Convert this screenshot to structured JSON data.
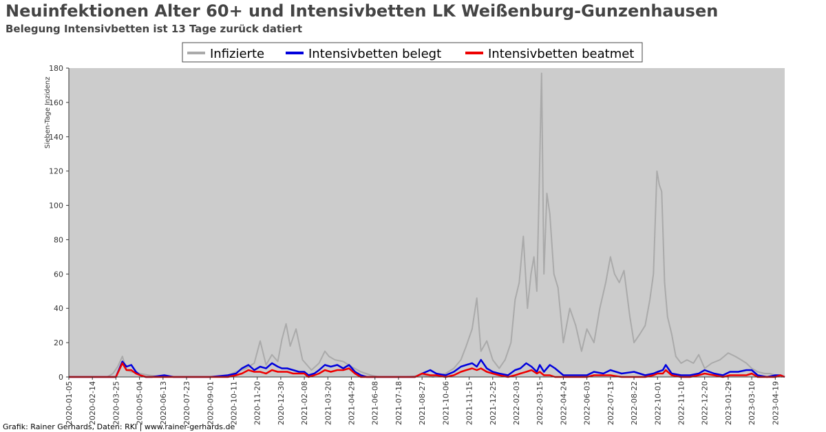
{
  "title": "Neuinfektionen Alter 60+ und Intensivbetten LK Weißenburg-Gunzenhausen",
  "subtitle": "Belegung Intensivbetten ist 13 Tage zurück datiert",
  "credit": "Grafik: Rainer Gerhards, Daten: RKI | www.rainer-gerhards.de",
  "chart_data": {
    "type": "line",
    "ylabel": "Sieben-Tage Inzidenz",
    "xlabel": "",
    "ylim": [
      0,
      180
    ],
    "xlim": [
      "2020-01-05",
      "2023-05-05"
    ],
    "grid": false,
    "legend_position": "top-center",
    "yticks": [
      0,
      20,
      40,
      60,
      80,
      100,
      120,
      140,
      160,
      180
    ],
    "xticks": [
      "2020-01-05",
      "2020-02-14",
      "2020-03-25",
      "2020-05-04",
      "2020-06-13",
      "2020-07-23",
      "2020-09-01",
      "2020-10-11",
      "2020-11-20",
      "2020-12-30",
      "2021-02-08",
      "2021-03-20",
      "2021-04-29",
      "2021-06-08",
      "2021-07-18",
      "2021-08-27",
      "2021-10-06",
      "2021-11-15",
      "2021-12-25",
      "2022-02-03",
      "2022-03-15",
      "2022-04-24",
      "2022-06-03",
      "2022-07-13",
      "2022-08-22",
      "2022-10-01",
      "2022-11-10",
      "2022-12-20",
      "2023-01-29",
      "2023-03-10",
      "2023-04-19"
    ],
    "series": [
      {
        "name": "Infizierte",
        "color": "#aaaaaa",
        "x": [
          "2020-01-05",
          "2020-03-10",
          "2020-03-20",
          "2020-03-28",
          "2020-04-05",
          "2020-04-12",
          "2020-04-20",
          "2020-05-05",
          "2020-05-20",
          "2020-06-15",
          "2020-08-01",
          "2020-09-15",
          "2020-10-01",
          "2020-10-15",
          "2020-11-01",
          "2020-11-15",
          "2020-11-25",
          "2020-12-05",
          "2020-12-15",
          "2020-12-25",
          "2021-01-01",
          "2021-01-08",
          "2021-01-15",
          "2021-01-25",
          "2021-02-05",
          "2021-02-20",
          "2021-03-05",
          "2021-03-15",
          "2021-03-22",
          "2021-04-01",
          "2021-04-15",
          "2021-04-29",
          "2021-05-15",
          "2021-06-01",
          "2021-06-15",
          "2021-08-01",
          "2021-08-27",
          "2021-09-15",
          "2021-10-06",
          "2021-10-20",
          "2021-11-01",
          "2021-11-10",
          "2021-11-20",
          "2021-11-28",
          "2021-12-05",
          "2021-12-15",
          "2021-12-25",
          "2022-01-05",
          "2022-01-15",
          "2022-01-25",
          "2022-02-01",
          "2022-02-08",
          "2022-02-15",
          "2022-02-22",
          "2022-02-28",
          "2022-03-05",
          "2022-03-10",
          "2022-03-14",
          "2022-03-18",
          "2022-03-22",
          "2022-03-27",
          "2022-04-01",
          "2022-04-08",
          "2022-04-15",
          "2022-04-24",
          "2022-05-05",
          "2022-05-15",
          "2022-05-25",
          "2022-06-03",
          "2022-06-15",
          "2022-06-25",
          "2022-07-05",
          "2022-07-13",
          "2022-07-20",
          "2022-07-28",
          "2022-08-05",
          "2022-08-15",
          "2022-08-22",
          "2022-09-01",
          "2022-09-10",
          "2022-09-18",
          "2022-09-24",
          "2022-09-30",
          "2022-10-04",
          "2022-10-08",
          "2022-10-13",
          "2022-10-18",
          "2022-10-25",
          "2022-11-01",
          "2022-11-10",
          "2022-11-20",
          "2022-12-01",
          "2022-12-10",
          "2022-12-20",
          "2023-01-01",
          "2023-01-15",
          "2023-01-29",
          "2023-02-10",
          "2023-02-20",
          "2023-03-01",
          "2023-03-10",
          "2023-03-20",
          "2023-04-01",
          "2023-04-10",
          "2023-04-19",
          "2023-05-01"
        ],
        "values": [
          0,
          0,
          2,
          6,
          12,
          4,
          3,
          2,
          1,
          0,
          0,
          0,
          1,
          3,
          5,
          8,
          21,
          7,
          13,
          9,
          22,
          31,
          18,
          28,
          10,
          4,
          8,
          15,
          12,
          10,
          9,
          6,
          3,
          1,
          0,
          0,
          1,
          0,
          2,
          5,
          10,
          18,
          28,
          46,
          15,
          21,
          10,
          5,
          10,
          20,
          45,
          55,
          82,
          40,
          60,
          70,
          50,
          112,
          177,
          60,
          107,
          95,
          60,
          52,
          20,
          40,
          30,
          15,
          28,
          20,
          40,
          55,
          70,
          60,
          55,
          62,
          35,
          20,
          25,
          30,
          45,
          60,
          120,
          112,
          108,
          55,
          35,
          25,
          12,
          8,
          10,
          8,
          13,
          5,
          8,
          10,
          14,
          12,
          10,
          8,
          5,
          3,
          2,
          2,
          1,
          0
        ]
      },
      {
        "name": "Intensivbetten belegt",
        "color": "#0000dd",
        "x": [
          "2020-01-05",
          "2020-03-25",
          "2020-04-05",
          "2020-04-12",
          "2020-04-20",
          "2020-04-28",
          "2020-05-05",
          "2020-05-15",
          "2020-05-25",
          "2020-06-15",
          "2020-07-01",
          "2020-08-01",
          "2020-09-01",
          "2020-10-01",
          "2020-10-15",
          "2020-10-25",
          "2020-11-05",
          "2020-11-15",
          "2020-11-25",
          "2020-12-05",
          "2020-12-15",
          "2020-12-25",
          "2021-01-01",
          "2021-01-10",
          "2021-01-20",
          "2021-01-30",
          "2021-02-08",
          "2021-02-15",
          "2021-02-25",
          "2021-03-05",
          "2021-03-15",
          "2021-03-25",
          "2021-04-05",
          "2021-04-15",
          "2021-04-25",
          "2021-05-05",
          "2021-05-15",
          "2021-05-25",
          "2021-06-08",
          "2021-08-15",
          "2021-08-27",
          "2021-09-10",
          "2021-09-20",
          "2021-10-06",
          "2021-10-20",
          "2021-11-01",
          "2021-11-10",
          "2021-11-20",
          "2021-11-28",
          "2021-12-05",
          "2021-12-15",
          "2021-12-25",
          "2022-01-05",
          "2022-01-20",
          "2022-02-01",
          "2022-02-10",
          "2022-02-20",
          "2022-03-01",
          "2022-03-10",
          "2022-03-15",
          "2022-03-22",
          "2022-04-01",
          "2022-04-10",
          "2022-04-24",
          "2022-05-15",
          "2022-06-03",
          "2022-06-15",
          "2022-07-01",
          "2022-07-13",
          "2022-08-01",
          "2022-08-22",
          "2022-09-10",
          "2022-09-24",
          "2022-10-01",
          "2022-10-10",
          "2022-10-15",
          "2022-10-25",
          "2022-11-10",
          "2022-11-25",
          "2022-12-10",
          "2022-12-20",
          "2023-01-05",
          "2023-01-20",
          "2023-02-01",
          "2023-02-15",
          "2023-03-01",
          "2023-03-10",
          "2023-03-20",
          "2023-04-05",
          "2023-04-19",
          "2023-04-28",
          "2023-05-05"
        ],
        "values": [
          0,
          0,
          9,
          6,
          7,
          3,
          1,
          0,
          0,
          1,
          0,
          0,
          0,
          1,
          2,
          5,
          7,
          4,
          6,
          5,
          8,
          6,
          5,
          5,
          4,
          3,
          3,
          1,
          2,
          4,
          7,
          6,
          7,
          5,
          7,
          3,
          1,
          0,
          0,
          0,
          2,
          4,
          2,
          1,
          3,
          6,
          7,
          8,
          6,
          10,
          5,
          3,
          2,
          1,
          4,
          5,
          8,
          6,
          3,
          7,
          3,
          7,
          5,
          1,
          1,
          1,
          3,
          2,
          4,
          2,
          3,
          1,
          2,
          3,
          4,
          7,
          2,
          1,
          1,
          2,
          4,
          2,
          1,
          3,
          3,
          4,
          4,
          1,
          0,
          1,
          1,
          0
        ]
      },
      {
        "name": "Intensivbetten beatmet",
        "color": "#ee0000",
        "x": [
          "2020-01-05",
          "2020-03-25",
          "2020-04-05",
          "2020-04-12",
          "2020-04-20",
          "2020-04-28",
          "2020-05-05",
          "2020-05-15",
          "2020-05-25",
          "2020-06-15",
          "2020-07-01",
          "2020-08-01",
          "2020-09-01",
          "2020-10-01",
          "2020-10-15",
          "2020-10-25",
          "2020-11-05",
          "2020-11-15",
          "2020-11-25",
          "2020-12-05",
          "2020-12-15",
          "2020-12-25",
          "2021-01-01",
          "2021-01-10",
          "2021-01-20",
          "2021-01-30",
          "2021-02-08",
          "2021-02-15",
          "2021-02-25",
          "2021-03-05",
          "2021-03-15",
          "2021-03-25",
          "2021-04-05",
          "2021-04-15",
          "2021-04-25",
          "2021-05-05",
          "2021-05-15",
          "2021-05-25",
          "2021-06-08",
          "2021-08-15",
          "2021-08-27",
          "2021-09-10",
          "2021-09-20",
          "2021-10-06",
          "2021-10-20",
          "2021-11-01",
          "2021-11-10",
          "2021-11-20",
          "2021-11-28",
          "2021-12-05",
          "2021-12-15",
          "2021-12-25",
          "2022-01-05",
          "2022-01-20",
          "2022-02-01",
          "2022-02-10",
          "2022-02-20",
          "2022-03-01",
          "2022-03-10",
          "2022-03-15",
          "2022-03-22",
          "2022-04-01",
          "2022-04-10",
          "2022-04-24",
          "2022-05-15",
          "2022-06-03",
          "2022-06-15",
          "2022-07-01",
          "2022-07-13",
          "2022-08-01",
          "2022-08-22",
          "2022-09-10",
          "2022-09-24",
          "2022-10-01",
          "2022-10-10",
          "2022-10-15",
          "2022-10-25",
          "2022-11-10",
          "2022-11-25",
          "2022-12-10",
          "2022-12-20",
          "2023-01-05",
          "2023-01-20",
          "2023-02-01",
          "2023-02-15",
          "2023-03-01",
          "2023-03-10",
          "2023-03-20",
          "2023-04-05",
          "2023-04-19",
          "2023-04-28",
          "2023-05-05"
        ],
        "values": [
          0,
          0,
          8,
          4,
          4,
          2,
          1,
          0,
          0,
          0,
          0,
          0,
          0,
          0,
          1,
          2,
          4,
          3,
          3,
          2,
          4,
          3,
          3,
          3,
          2,
          2,
          2,
          0,
          1,
          2,
          4,
          3,
          4,
          4,
          5,
          2,
          0,
          0,
          0,
          0,
          2,
          1,
          1,
          0,
          1,
          3,
          4,
          5,
          4,
          5,
          3,
          2,
          1,
          0,
          1,
          2,
          3,
          4,
          2,
          3,
          1,
          1,
          0,
          0,
          0,
          0,
          1,
          1,
          1,
          0,
          0,
          0,
          1,
          2,
          2,
          4,
          1,
          0,
          0,
          1,
          2,
          1,
          0,
          1,
          1,
          1,
          2,
          0,
          0,
          0,
          1,
          0
        ]
      }
    ]
  }
}
